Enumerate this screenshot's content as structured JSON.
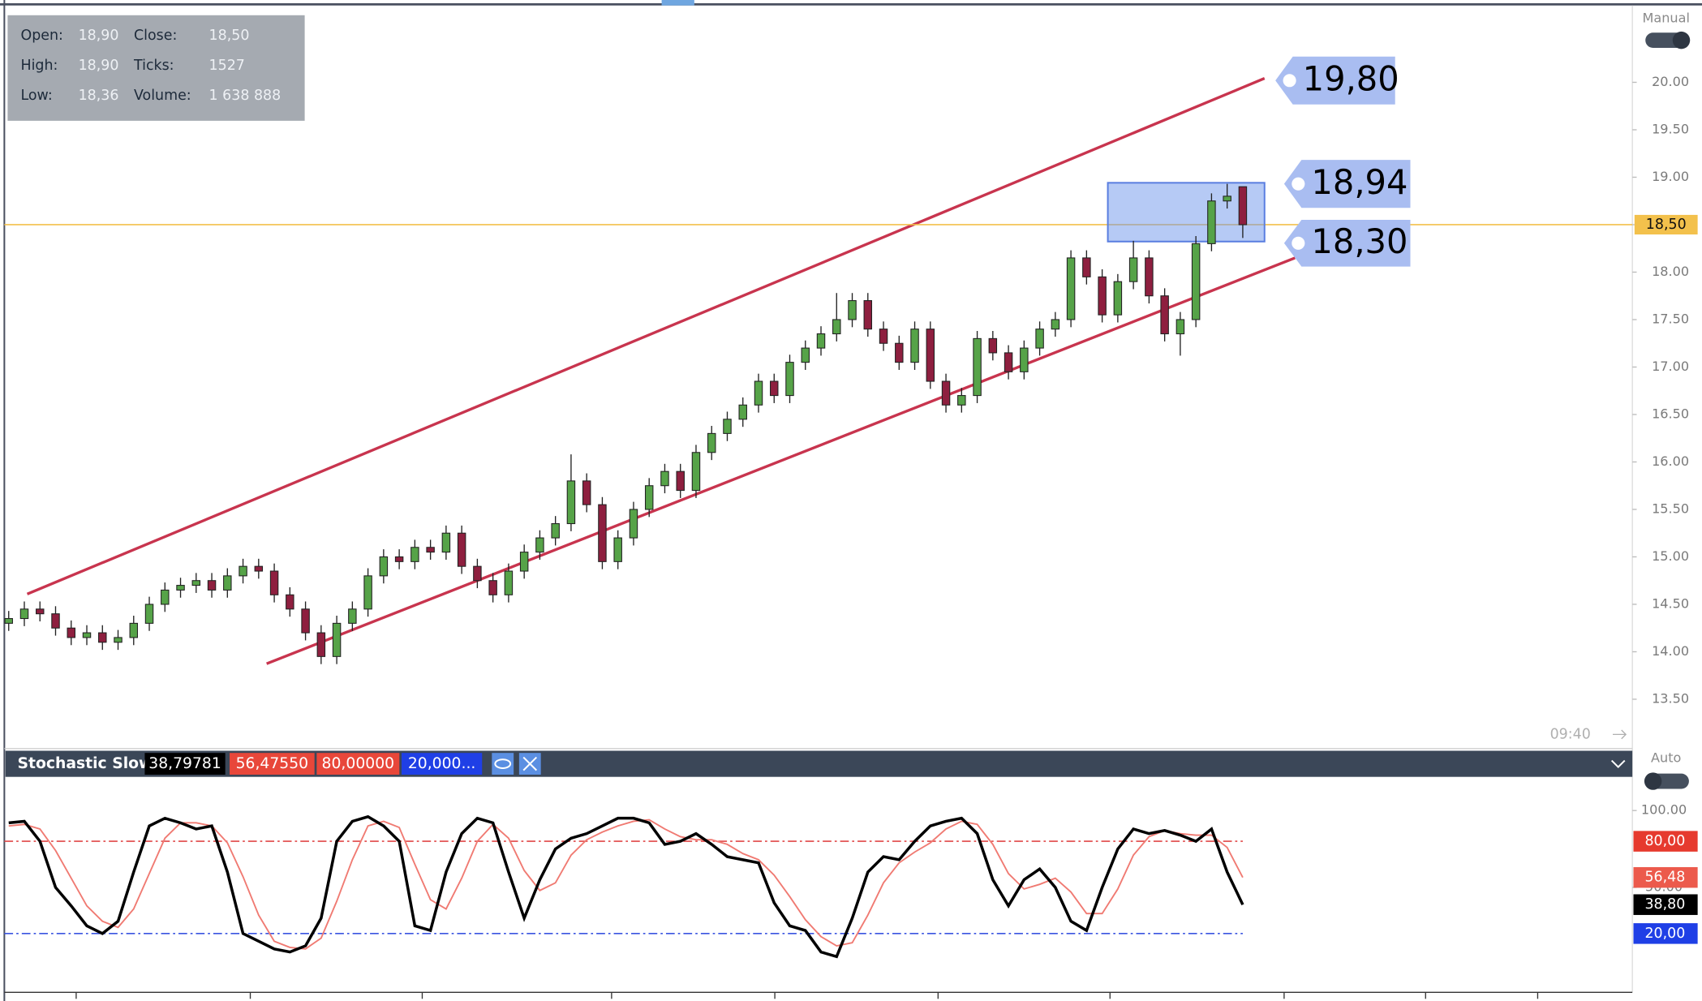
{
  "info": {
    "rows": [
      [
        "Open:",
        "18,90",
        "Close:",
        "18,50"
      ],
      [
        "High:",
        "18,90",
        "Ticks:",
        "1527"
      ],
      [
        "Low:",
        "18,36",
        "Volume:",
        "1 638 888"
      ]
    ]
  },
  "toggle_main": "Manual",
  "toggle_sub": "Auto",
  "time_label": "09:40",
  "chart_data": [
    {
      "type": "candlestick",
      "colors": {
        "up": "#56a348",
        "down": "#8e1f3f"
      },
      "ylim": [
        12.98,
        20.81
      ],
      "yticks": [
        {
          "value": 13.5,
          "label": "13.50"
        },
        {
          "value": 14,
          "label": "14.00"
        },
        {
          "value": 14.5,
          "label": "14.50"
        },
        {
          "value": 15,
          "label": "15.00"
        },
        {
          "value": 15.5,
          "label": "15.50"
        },
        {
          "value": 16,
          "label": "16.00"
        },
        {
          "value": 16.5,
          "label": "16.50"
        },
        {
          "value": 17,
          "label": "17.00"
        },
        {
          "value": 17.5,
          "label": "17.50"
        },
        {
          "value": 18,
          "label": "18.00"
        },
        {
          "value": 18.5,
          "label": "18.50"
        },
        {
          "value": 19,
          "label": "19.00"
        },
        {
          "value": 19.5,
          "label": "19.50"
        },
        {
          "value": 20,
          "label": "20.00"
        }
      ],
      "last_price": {
        "value": 18.5,
        "label": "18,50",
        "color": "#f3c14c"
      },
      "annotations": [
        {
          "label": "19,80"
        },
        {
          "label": "18,94"
        },
        {
          "label": "18,30"
        }
      ],
      "ohlc": [
        [
          14.3,
          14.43,
          14.22,
          14.35
        ],
        [
          14.35,
          14.53,
          14.27,
          14.45
        ],
        [
          14.45,
          14.53,
          14.32,
          14.4
        ],
        [
          14.4,
          14.48,
          14.17,
          14.25
        ],
        [
          14.25,
          14.33,
          14.07,
          14.15
        ],
        [
          14.15,
          14.28,
          14.07,
          14.2
        ],
        [
          14.2,
          14.28,
          14.02,
          14.1
        ],
        [
          14.1,
          14.23,
          14.02,
          14.15
        ],
        [
          14.15,
          14.38,
          14.07,
          14.3
        ],
        [
          14.3,
          14.58,
          14.22,
          14.5
        ],
        [
          14.5,
          14.73,
          14.42,
          14.65
        ],
        [
          14.65,
          14.78,
          14.57,
          14.7
        ],
        [
          14.7,
          14.83,
          14.62,
          14.75
        ],
        [
          14.75,
          14.83,
          14.57,
          14.65
        ],
        [
          14.65,
          14.88,
          14.57,
          14.8
        ],
        [
          14.8,
          14.98,
          14.72,
          14.9
        ],
        [
          14.9,
          14.98,
          14.77,
          14.85
        ],
        [
          14.85,
          14.93,
          14.52,
          14.6
        ],
        [
          14.6,
          14.68,
          14.37,
          14.45
        ],
        [
          14.45,
          14.53,
          14.12,
          14.2
        ],
        [
          14.2,
          14.28,
          13.87,
          13.95
        ],
        [
          13.95,
          14.38,
          13.87,
          14.3
        ],
        [
          14.3,
          14.53,
          14.22,
          14.45
        ],
        [
          14.45,
          14.88,
          14.37,
          14.8
        ],
        [
          14.8,
          15.08,
          14.72,
          15.0
        ],
        [
          15.0,
          15.08,
          14.87,
          14.95
        ],
        [
          14.95,
          15.18,
          14.87,
          15.1
        ],
        [
          15.1,
          15.18,
          14.97,
          15.05
        ],
        [
          15.05,
          15.33,
          14.97,
          15.25
        ],
        [
          15.25,
          15.33,
          14.82,
          14.9
        ],
        [
          14.9,
          14.98,
          14.67,
          14.75
        ],
        [
          14.75,
          14.83,
          14.52,
          14.6
        ],
        [
          14.6,
          14.93,
          14.52,
          14.85
        ],
        [
          14.85,
          15.13,
          14.77,
          15.05
        ],
        [
          15.05,
          15.28,
          14.97,
          15.2
        ],
        [
          15.2,
          15.43,
          15.12,
          15.35
        ],
        [
          15.35,
          16.08,
          15.27,
          15.8
        ],
        [
          15.8,
          15.88,
          15.47,
          15.55
        ],
        [
          15.55,
          15.63,
          14.87,
          14.95
        ],
        [
          14.95,
          15.28,
          14.87,
          15.2
        ],
        [
          15.2,
          15.58,
          15.12,
          15.5
        ],
        [
          15.5,
          15.83,
          15.42,
          15.75
        ],
        [
          15.75,
          15.98,
          15.67,
          15.9
        ],
        [
          15.9,
          15.98,
          15.62,
          15.7
        ],
        [
          15.7,
          16.18,
          15.62,
          16.1
        ],
        [
          16.1,
          16.38,
          16.02,
          16.3
        ],
        [
          16.3,
          16.53,
          16.22,
          16.45
        ],
        [
          16.45,
          16.68,
          16.37,
          16.6
        ],
        [
          16.6,
          16.93,
          16.52,
          16.85
        ],
        [
          16.85,
          16.93,
          16.62,
          16.7
        ],
        [
          16.7,
          17.13,
          16.62,
          17.05
        ],
        [
          17.05,
          17.28,
          16.97,
          17.2
        ],
        [
          17.2,
          17.43,
          17.12,
          17.35
        ],
        [
          17.35,
          17.78,
          17.27,
          17.5
        ],
        [
          17.5,
          17.78,
          17.42,
          17.7
        ],
        [
          17.7,
          17.78,
          17.32,
          17.4
        ],
        [
          17.4,
          17.48,
          17.17,
          17.25
        ],
        [
          17.25,
          17.33,
          16.97,
          17.05
        ],
        [
          17.05,
          17.48,
          16.97,
          17.4
        ],
        [
          17.4,
          17.48,
          16.77,
          16.85
        ],
        [
          16.85,
          16.93,
          16.52,
          16.6
        ],
        [
          16.6,
          16.78,
          16.52,
          16.7
        ],
        [
          16.7,
          17.38,
          16.62,
          17.3
        ],
        [
          17.3,
          17.38,
          17.07,
          17.15
        ],
        [
          17.15,
          17.23,
          16.87,
          16.95
        ],
        [
          16.95,
          17.28,
          16.87,
          17.2
        ],
        [
          17.2,
          17.48,
          17.12,
          17.4
        ],
        [
          17.4,
          17.58,
          17.32,
          17.5
        ],
        [
          17.5,
          18.23,
          17.42,
          18.15
        ],
        [
          18.15,
          18.23,
          17.87,
          17.95
        ],
        [
          17.95,
          18.03,
          17.47,
          17.55
        ],
        [
          17.55,
          17.98,
          17.47,
          17.9
        ],
        [
          17.9,
          18.33,
          17.82,
          18.15
        ],
        [
          18.15,
          18.23,
          17.67,
          17.75
        ],
        [
          17.75,
          17.83,
          17.27,
          17.35
        ],
        [
          17.35,
          17.58,
          17.12,
          17.5
        ],
        [
          17.5,
          18.38,
          17.42,
          18.3
        ],
        [
          18.3,
          18.83,
          18.22,
          18.75
        ],
        [
          18.75,
          18.93,
          18.67,
          18.8
        ],
        [
          18.9,
          18.9,
          18.36,
          18.5
        ]
      ]
    },
    {
      "type": "line",
      "title": "Stochastic Slow",
      "header_values": [
        {
          "label": "38,79781",
          "color": "#000000"
        },
        {
          "label": "56,47550",
          "color": "#e8473a"
        },
        {
          "label": "80,00000",
          "color": "#e8473a"
        },
        {
          "label": "20,000...",
          "color": "#1f3fe6"
        }
      ],
      "ylim": [
        -16.8,
        121.9
      ],
      "yticks": [
        {
          "value": 100,
          "label": "100.00"
        },
        {
          "value": 50,
          "label": "50.00"
        }
      ],
      "levels": [
        {
          "value": 80,
          "color": "#e04848"
        },
        {
          "value": 20,
          "color": "#3a55e0"
        }
      ],
      "axis_labels": [
        {
          "value": 80,
          "label": "80,00",
          "color": "#e63a2e"
        },
        {
          "value": 56.4755,
          "label": "56,48",
          "color": "#ec5a4c"
        },
        {
          "value": 38.79781,
          "label": "38,80",
          "color": "#000000"
        },
        {
          "value": 20,
          "label": "20,00",
          "color": "#1f3fe6"
        }
      ],
      "series": [
        {
          "color": "#f07a72",
          "values": [
            90,
            91,
            88,
            74,
            56,
            38,
            28,
            24,
            36,
            59,
            82,
            92,
            92,
            90,
            79,
            57,
            32,
            15,
            11,
            10,
            17,
            41,
            68,
            90,
            93,
            89,
            65,
            42,
            36,
            56,
            80,
            91,
            82,
            61,
            48,
            53,
            71,
            81,
            86,
            90,
            93,
            94,
            88,
            83,
            81,
            81,
            78,
            72,
            68,
            58,
            44,
            29,
            18,
            12,
            14,
            32,
            53,
            66,
            73,
            79,
            88,
            93,
            91,
            78,
            59,
            49,
            52,
            56,
            47,
            33,
            33,
            49,
            71,
            83,
            87,
            85,
            84,
            84,
            76,
            56.4755
          ]
        },
        {
          "color": "#000000",
          "values": [
            92,
            93,
            80,
            50,
            38,
            25,
            20,
            28,
            60,
            90,
            95,
            92,
            88,
            90,
            60,
            20,
            15,
            10,
            8,
            12,
            30,
            80,
            93,
            96,
            90,
            80,
            25,
            22,
            60,
            85,
            95,
            92,
            60,
            30,
            55,
            75,
            82,
            85,
            90,
            95,
            95,
            92,
            78,
            80,
            85,
            78,
            70,
            68,
            66,
            40,
            25,
            22,
            8,
            5,
            30,
            60,
            70,
            68,
            80,
            90,
            93,
            95,
            85,
            55,
            38,
            55,
            62,
            50,
            28,
            22,
            50,
            75,
            88,
            85,
            87,
            84,
            80,
            88,
            60,
            38.79781
          ]
        }
      ]
    }
  ]
}
